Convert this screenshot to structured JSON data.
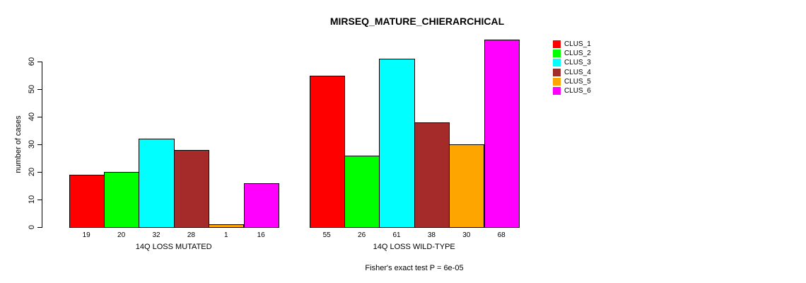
{
  "title": "MIRSEQ_MATURE_CHIERARCHICAL",
  "caption": "Fisher's exact test P = 6e-05",
  "chart_data": {
    "type": "bar",
    "title": "MIRSEQ_MATURE_CHIERARCHICAL",
    "ylabel": "number of cases",
    "ylim": [
      0,
      60
    ],
    "yticks": [
      0,
      10,
      20,
      30,
      40,
      50,
      60
    ],
    "grid": false,
    "legend_position": "top-right",
    "series_names": [
      "CLUS_1",
      "CLUS_2",
      "CLUS_3",
      "CLUS_4",
      "CLUS_5",
      "CLUS_6"
    ],
    "colors": [
      "#FF0000",
      "#00FF00",
      "#00FFFF",
      "#A52A2A",
      "#FFA500",
      "#FF00FF"
    ],
    "bar_border_color": "#000000",
    "groups": [
      {
        "label": "14Q LOSS MUTATED",
        "values": [
          19,
          20,
          32,
          28,
          1,
          16
        ]
      },
      {
        "label": "14Q LOSS WILD-TYPE",
        "values": [
          55,
          26,
          61,
          38,
          30,
          68
        ]
      }
    ],
    "annotation": "Fisher's exact test P = 6e-05"
  }
}
